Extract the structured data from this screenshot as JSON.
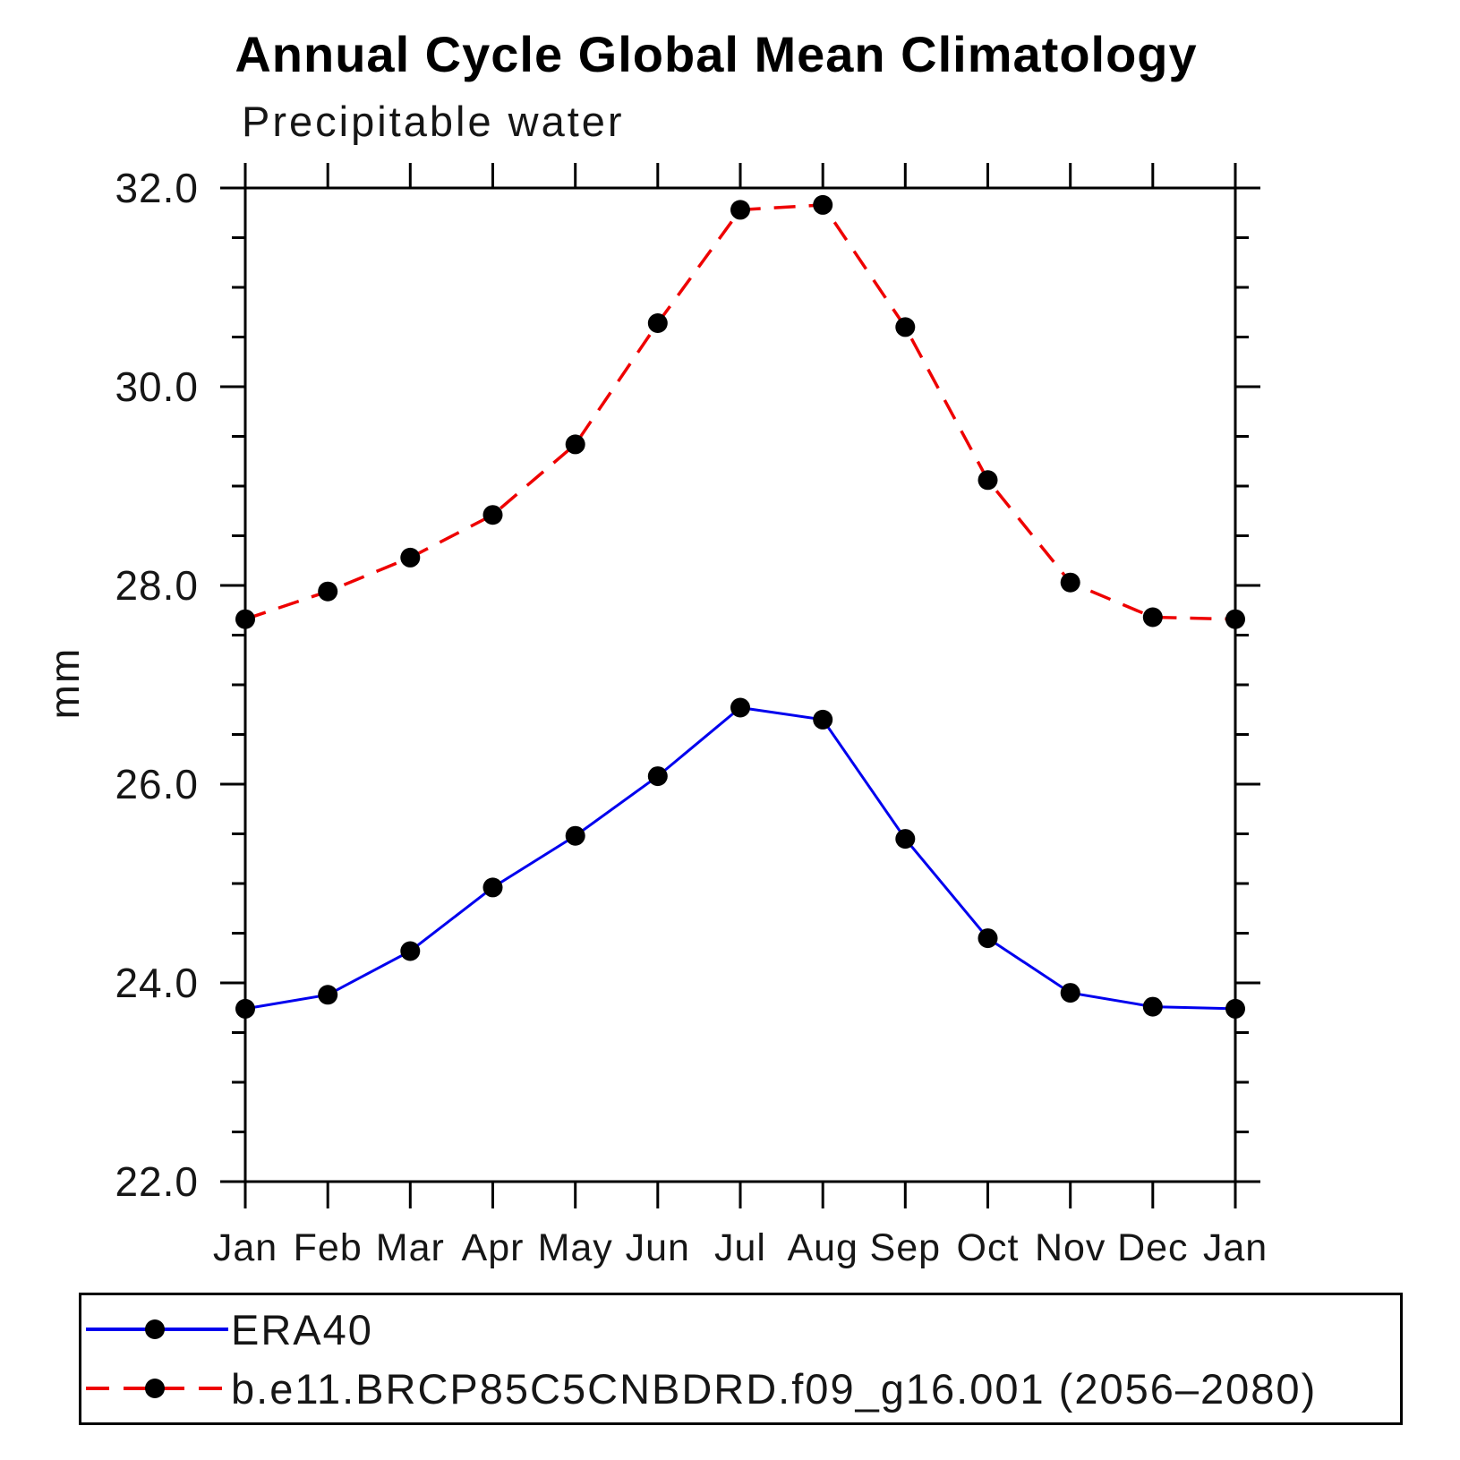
{
  "page": {
    "background": "#ffffff"
  },
  "chart_data": {
    "type": "line",
    "title": "Annual Cycle Global Mean Climatology",
    "subtitle": "Precipitable water",
    "xlabel": "",
    "ylabel": "mm",
    "categories": [
      "Jan",
      "Feb",
      "Mar",
      "Apr",
      "May",
      "Jun",
      "Jul",
      "Aug",
      "Sep",
      "Oct",
      "Nov",
      "Dec",
      "Jan"
    ],
    "ylim": [
      22.0,
      32.0
    ],
    "ytick_major_interval": 2.0,
    "ytick_minor_interval": 0.5,
    "ytick_labels": [
      "22.0",
      "24.0",
      "26.0",
      "28.0",
      "30.0",
      "32.0"
    ],
    "grid": false,
    "legend_position": "bottom-left",
    "axis_color": "#000000",
    "marker": {
      "shape": "filled-circle",
      "color": "#000000",
      "radius_px": 11
    },
    "series": [
      {
        "name": "ERA40",
        "color": "#0000ee",
        "style": "solid",
        "values": [
          23.74,
          23.88,
          24.32,
          24.96,
          25.48,
          26.08,
          26.77,
          26.65,
          25.45,
          24.45,
          23.9,
          23.76,
          23.74
        ]
      },
      {
        "name": "b.e11.BRCP85C5CNBDRD.f09_g16.001 (2056–2080)",
        "color": "#ee0000",
        "style": "dashed",
        "values": [
          27.66,
          27.94,
          28.28,
          28.71,
          29.42,
          30.64,
          31.78,
          31.83,
          30.6,
          29.06,
          28.03,
          27.68,
          27.66
        ]
      }
    ]
  }
}
